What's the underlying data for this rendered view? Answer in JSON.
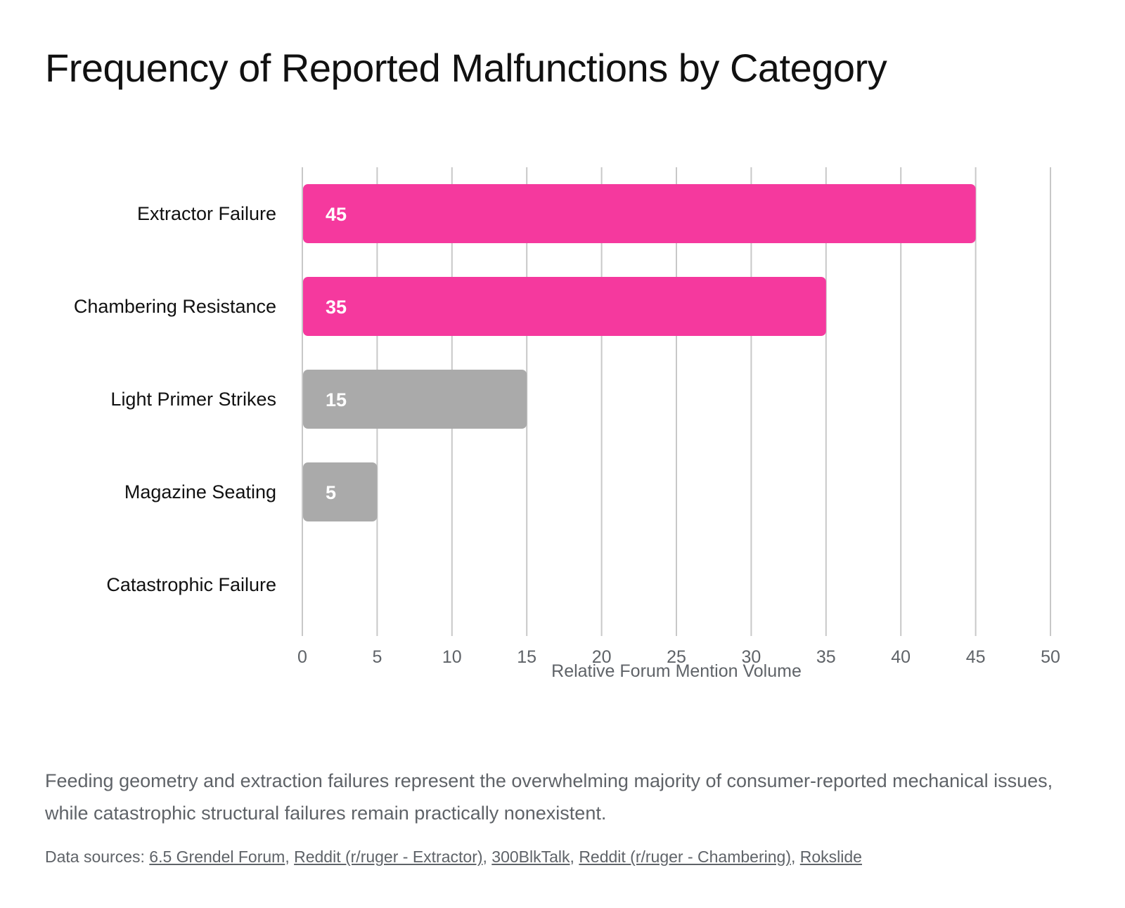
{
  "title": "Frequency of Reported Malfunctions by Category",
  "chart_data": {
    "type": "bar",
    "orientation": "horizontal",
    "categories": [
      "Extractor Failure",
      "Chambering Resistance",
      "Light Primer Strikes",
      "Magazine Seating",
      "Catastrophic Failure"
    ],
    "values": [
      45,
      35,
      15,
      5,
      0
    ],
    "data_labels": [
      "45",
      "35",
      "15",
      "5",
      ""
    ],
    "bar_colors": [
      "#f5399e",
      "#f5399e",
      "#aaaaaa",
      "#aaaaaa",
      "#aaaaaa"
    ],
    "xlabel": "Relative Forum Mention Volume",
    "ylabel": "",
    "xlim": [
      0,
      50
    ],
    "xticks": [
      0,
      5,
      10,
      15,
      20,
      25,
      30,
      35,
      40,
      45,
      50
    ],
    "grid": true
  },
  "caption": "Feeding geometry and extraction failures represent the overwhelming majority of consumer-reported mechanical issues, while catastrophic structural failures remain practically nonexistent.",
  "sources": {
    "label": "Data sources:",
    "links": [
      "6.5 Grendel Forum",
      "Reddit (r/ruger - Extractor)",
      "300BlkTalk",
      "Reddit (r/ruger - Chambering)",
      "Rokslide"
    ]
  },
  "colors": {
    "highlight": "#f5399e",
    "neutral": "#aaaaaa",
    "grid": "#c8c8c8",
    "axis_text": "#5f6368",
    "label_text": "#111111"
  }
}
